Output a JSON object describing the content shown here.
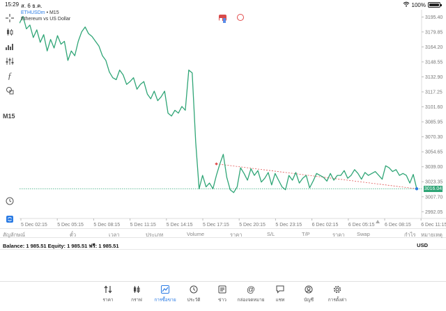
{
  "status": {
    "time": "15:29",
    "date": "ส. 6 ธ.ค.",
    "battery": "100%"
  },
  "toolbar": {
    "timeframe": "M15"
  },
  "chart": {
    "symbol": "ETHUSDm",
    "timeframe": "M15",
    "description": "Ethereum vs US Dollar",
    "current_price_label": "3016.04",
    "line_color": "#2fa576",
    "price_ticks": [
      "3195.40",
      "3179.85",
      "3164.20",
      "3148.55",
      "3132.90",
      "3117.25",
      "3101.60",
      "3085.95",
      "3070.30",
      "3054.65",
      "3039.00",
      "3023.35",
      "3007.70",
      "2992.05"
    ],
    "time_ticks": [
      "5 Dec 02:15",
      "5 Dec 05:15",
      "5 Dec 08:15",
      "5 Dec 11:15",
      "5 Dec 14:15",
      "5 Dec 17:15",
      "5 Dec 20:15",
      "5 Dec 23:15",
      "6 Dec 02:15",
      "6 Dec 05:15",
      "6 Dec 08:15",
      "6 Dec 11:15"
    ]
  },
  "chart_data": {
    "type": "line",
    "title": "ETHUSDm • M15",
    "subtitle": "Ethereum vs US Dollar",
    "ylim": [
      2985,
      3203
    ],
    "x_start": "5 Dec 00:45",
    "x_step_minutes": 15,
    "values": [
      3189,
      3196,
      3183,
      3187,
      3174,
      3182,
      3169,
      3177,
      3160,
      3172,
      3163,
      3176,
      3167,
      3170,
      3150,
      3160,
      3155,
      3170,
      3180,
      3185,
      3178,
      3175,
      3170,
      3165,
      3155,
      3150,
      3138,
      3132,
      3130,
      3140,
      3135,
      3125,
      3128,
      3132,
      3120,
      3125,
      3128,
      3115,
      3110,
      3118,
      3108,
      3112,
      3118,
      3095,
      3092,
      3098,
      3095,
      3102,
      3098,
      3140,
      3137,
      3065,
      3016,
      3030,
      3018,
      3022,
      3016,
      3030,
      3042,
      3052,
      3028,
      3015,
      3012,
      3018,
      3038,
      3032,
      3025,
      3037,
      3030,
      3035,
      3023,
      3027,
      3033,
      3020,
      3032,
      3025,
      3018,
      3015,
      3030,
      3025,
      3033,
      3022,
      3027,
      3030,
      3017,
      3024,
      3032,
      3030,
      3028,
      3024,
      3032,
      3025,
      3030,
      3030,
      3035,
      3027,
      3030,
      3036,
      3032,
      3026,
      3033,
      3030,
      3032,
      3034,
      3030,
      3026,
      3040,
      3038,
      3034,
      3036,
      3030,
      3032,
      3030,
      3022,
      3031,
      3016
    ],
    "overlay_line": {
      "start_value": 3042,
      "end_value": 3016,
      "color": "#e05050"
    },
    "current_price": 3016.04,
    "x_ticks": [
      "5 Dec 02:15",
      "5 Dec 05:15",
      "5 Dec 08:15",
      "5 Dec 11:15",
      "5 Dec 14:15",
      "5 Dec 17:15",
      "5 Dec 20:15",
      "5 Dec 23:15",
      "6 Dec 02:15",
      "6 Dec 05:15",
      "6 Dec 08:15",
      "6 Dec 11:15"
    ],
    "y_ticks": [
      3195.4,
      3179.85,
      3164.2,
      3148.55,
      3132.9,
      3117.25,
      3101.6,
      3085.95,
      3070.3,
      3054.65,
      3039.0,
      3023.35,
      3007.7,
      2992.05
    ],
    "grid": false
  },
  "table": {
    "columns": [
      "สัญลักษณ์",
      "ตั๋ว",
      "เวลา",
      "ประเภท",
      "Volume",
      "ราคา",
      "S/L",
      "T/P",
      "ราคา",
      "Swap",
      "กำไร",
      "หมายเหตุ"
    ]
  },
  "account": {
    "balance_text": "Balance: 1 985.51 Equity: 1 985.51 ฟรี: 1 985.51",
    "currency": "USD"
  },
  "tabs": [
    {
      "label": "ราคา",
      "icon": "quotes-icon",
      "active": false
    },
    {
      "label": "กราฟ",
      "icon": "chart-icon",
      "active": false
    },
    {
      "label": "การซื้อขาย",
      "icon": "trade-icon",
      "active": true
    },
    {
      "label": "ประวัติ",
      "icon": "history-icon",
      "active": false
    },
    {
      "label": "ข่าว",
      "icon": "news-icon",
      "active": false
    },
    {
      "label": "กล่องจดหมาย",
      "icon": "mailbox-icon",
      "active": false
    },
    {
      "label": "แชท",
      "icon": "chat-icon",
      "active": false
    },
    {
      "label": "บัญชี",
      "icon": "account-icon",
      "active": false
    },
    {
      "label": "การตั้งค่า",
      "icon": "settings-icon",
      "active": false
    }
  ]
}
